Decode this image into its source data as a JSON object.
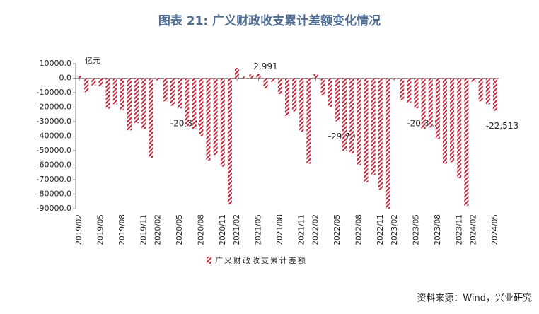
{
  "chart_data": {
    "type": "bar",
    "title": "图表 21: 广义财政收支累计差额变化情况",
    "y_unit": "亿元",
    "source": "资料来源：Wind，兴业研究",
    "categories": [
      "2019/02",
      null,
      null,
      "2019/05",
      null,
      null,
      "2019/08",
      null,
      null,
      "2019/11",
      null,
      "2020/02",
      null,
      null,
      "2020/05",
      null,
      null,
      "2020/08",
      null,
      null,
      "2020/11",
      null,
      "2021/02",
      null,
      null,
      "2021/05",
      null,
      null,
      "2021/08",
      null,
      null,
      "2021/11",
      null,
      "2022/02",
      null,
      null,
      "2022/05",
      null,
      null,
      "2022/08",
      null,
      null,
      "2022/11",
      null,
      "2023/02",
      null,
      null,
      "2023/05",
      null,
      null,
      "2023/08",
      null,
      null,
      "2023/11",
      null,
      "2024/02",
      null,
      null,
      "2024/05"
    ],
    "series": [
      {
        "name": "广义财政收支累计差额",
        "color": "#c0273a",
        "values": [
          1500,
          -9600,
          -5000,
          -5600,
          -21000,
          -18000,
          -22000,
          -36000,
          -31000,
          -35000,
          -55000,
          -1500,
          -16000,
          -19000,
          -20824,
          -33000,
          -35000,
          -40000,
          -57000,
          -53000,
          -61000,
          -87000,
          7000,
          1000,
          2500,
          2991,
          -7000,
          -2500,
          -11000,
          -26000,
          -23000,
          -37000,
          -59000,
          3000,
          -12000,
          -20000,
          -29701,
          -50000,
          -52000,
          -60000,
          -72000,
          -67000,
          -77000,
          -90000,
          -1000,
          -15000,
          -17000,
          -20815,
          -35000,
          -34000,
          -42000,
          -59000,
          -58000,
          -69000,
          -88000,
          -2500,
          -16000,
          -18000,
          -22513
        ],
        "value_labels": [
          null,
          null,
          null,
          null,
          null,
          null,
          null,
          null,
          null,
          null,
          null,
          null,
          null,
          null,
          "-20,824",
          null,
          null,
          null,
          null,
          null,
          null,
          null,
          null,
          null,
          null,
          "2,991",
          null,
          null,
          null,
          null,
          null,
          null,
          null,
          null,
          null,
          null,
          "-29,701",
          null,
          null,
          null,
          null,
          null,
          null,
          null,
          null,
          null,
          null,
          "-20,815",
          null,
          null,
          null,
          null,
          null,
          null,
          null,
          null,
          null,
          null,
          "-22,513"
        ]
      }
    ],
    "ylim": [
      -90000,
      10000
    ],
    "yticks": [
      {
        "value": 10000,
        "label": "10000.0"
      },
      {
        "value": 0,
        "label": "0.0"
      },
      {
        "value": -10000,
        "label": "-10000.0"
      },
      {
        "value": -20000,
        "label": "-20000.0"
      },
      {
        "value": -30000,
        "label": "-30000.0"
      },
      {
        "value": -40000,
        "label": "-40000.0"
      },
      {
        "value": -50000,
        "label": "-50000.0"
      },
      {
        "value": -60000,
        "label": "-60000.0"
      },
      {
        "value": -70000,
        "label": "-70000.0"
      },
      {
        "value": -80000,
        "label": "-80000.0"
      },
      {
        "value": -90000,
        "label": "-90000.0"
      }
    ],
    "legend": "bottom"
  }
}
